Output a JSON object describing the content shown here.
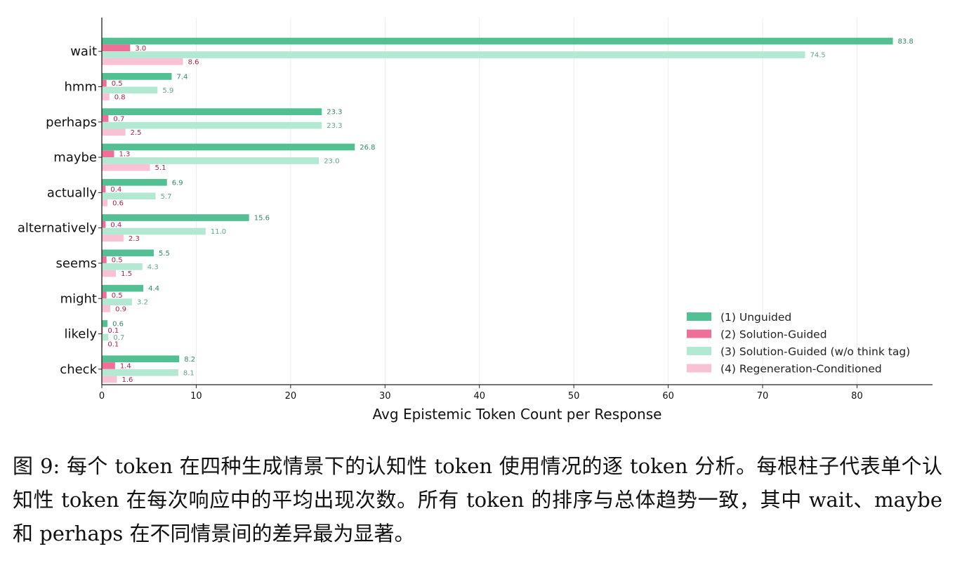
{
  "chart_data": {
    "type": "bar",
    "orientation": "horizontal",
    "categories": [
      "wait",
      "hmm",
      "perhaps",
      "maybe",
      "actually",
      "alternatively",
      "seems",
      "might",
      "likely",
      "check"
    ],
    "series": [
      {
        "name": "(1) Unguided",
        "color": "#52c093",
        "label_color": "#2e8b63",
        "values": [
          83.8,
          7.4,
          23.3,
          26.8,
          6.9,
          15.6,
          5.5,
          4.4,
          0.6,
          8.2
        ]
      },
      {
        "name": "(2) Solution-Guided",
        "color": "#ef6f98",
        "label_color": "#b0204f",
        "values": [
          3.0,
          0.5,
          0.7,
          1.3,
          0.4,
          0.4,
          0.5,
          0.5,
          0.1,
          1.4
        ]
      },
      {
        "name": "(3) Solution-Guided (w/o think tag)",
        "color": "#b3e8d3",
        "label_color": "#5fa886",
        "values": [
          74.5,
          5.9,
          23.3,
          23.0,
          5.7,
          11.0,
          4.3,
          3.2,
          0.7,
          8.1
        ]
      },
      {
        "name": "(4) Regeneration-Conditioned",
        "color": "#f8c1d4",
        "label_color": "#b0204f",
        "values": [
          8.6,
          0.8,
          2.5,
          5.1,
          0.6,
          2.3,
          1.5,
          0.9,
          0.1,
          1.6
        ]
      }
    ],
    "xlabel": "Avg Epistemic Token Count per Response",
    "ylabel": "",
    "xlim": [
      0,
      88
    ],
    "xticks": [
      0,
      10,
      20,
      30,
      40,
      50,
      60,
      70,
      80
    ],
    "grid": "vertical",
    "legend_position": "lower-right"
  },
  "caption": {
    "text": "图 9: 每个 token 在四种生成情景下的认知性 token 使用情况的逐 token 分析。每根柱子代表单个认知性 token 在每次响应中的平均出现次数。所有 token 的排序与总体趋势一致，其中 wait、maybe 和 perhaps 在不同情景间的差异最为显著。"
  }
}
